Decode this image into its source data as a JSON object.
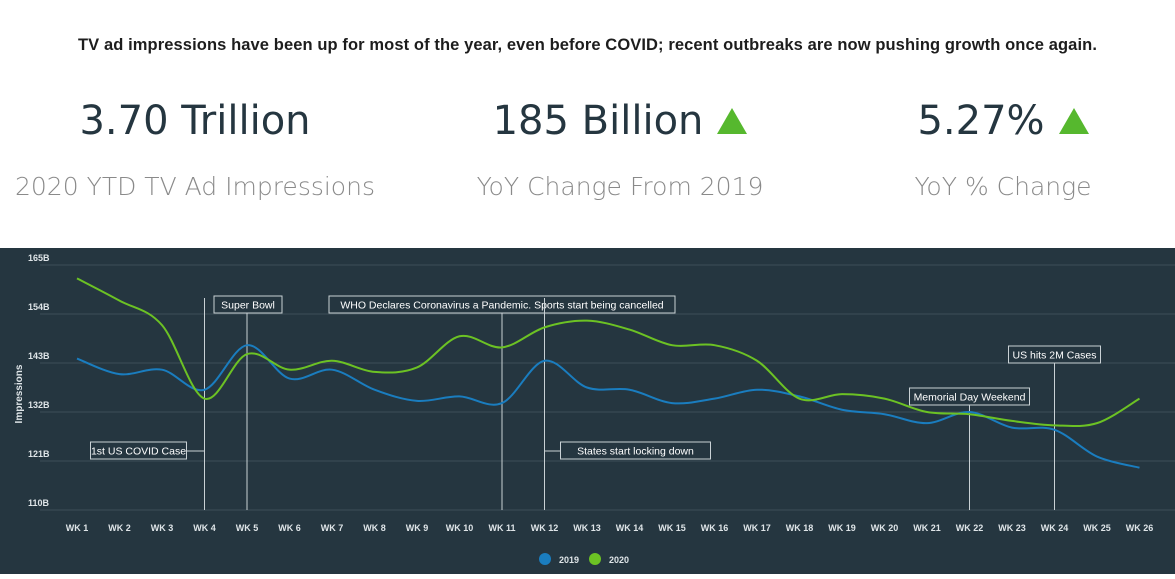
{
  "headline": "TV ad impressions have been up for most of the year, even before COVID; recent outbreaks are now pushing growth once again.",
  "kpis": [
    {
      "value": "3.70 Trillion",
      "label": "2020 YTD TV Ad Impressions",
      "trend": "none"
    },
    {
      "value": "185 Billion",
      "label": "YoY Change From 2019",
      "trend": "up"
    },
    {
      "value": "5.27%",
      "label": "YoY % Change",
      "trend": "up"
    }
  ],
  "colors": {
    "panel_bg": "#253640",
    "series_2019": "#1a7dbf",
    "series_2020": "#6cc224",
    "up_arrow": "#56b82e"
  },
  "chart_data": {
    "type": "line",
    "ylabel": "Impressions",
    "xlabel": "",
    "y_ticks": [
      "110B",
      "121B",
      "132B",
      "143B",
      "154B",
      "165B"
    ],
    "ylim": [
      110,
      165
    ],
    "grid": true,
    "legend_position": "bottom-center",
    "categories": [
      "WK 1",
      "WK 2",
      "WK 3",
      "WK 4",
      "WK 5",
      "WK 6",
      "WK 7",
      "WK 8",
      "WK 9",
      "WK 10",
      "WK 11",
      "WK 12",
      "WK 13",
      "WK 14",
      "WK 15",
      "WK 16",
      "WK 17",
      "WK 18",
      "WK 19",
      "WK 20",
      "WK 21",
      "WK 22",
      "WK 23",
      "WK 24",
      "WK 25",
      "WK 26"
    ],
    "series": [
      {
        "name": "2019",
        "values": [
          144,
          140.5,
          141.5,
          137,
          147,
          139.5,
          141.5,
          137,
          134.5,
          135.5,
          134,
          143.5,
          137.5,
          137,
          134,
          135,
          137,
          135.5,
          132.5,
          131.5,
          129.5,
          132,
          128.5,
          128,
          122,
          119.5
        ]
      },
      {
        "name": "2020",
        "values": [
          162,
          157,
          151.5,
          135,
          145,
          141.5,
          143.5,
          141,
          142,
          149,
          146.5,
          151,
          152.5,
          150.5,
          147,
          147,
          143.5,
          135,
          136,
          135,
          132,
          131.5,
          130,
          129,
          129.5,
          135
        ]
      }
    ],
    "annotations": [
      {
        "text": "Super Bowl",
        "week": 5
      },
      {
        "text": "WHO Declares Coronavirus a Pandemic. Sports start being cancelled",
        "week": 11
      },
      {
        "text": "1st US COVID Case",
        "week": 4
      },
      {
        "text": "States start locking down",
        "week": 12
      },
      {
        "text": "Memorial Day Weekend",
        "week": 22
      },
      {
        "text": "US hits 2M Cases",
        "week": 24
      }
    ]
  }
}
